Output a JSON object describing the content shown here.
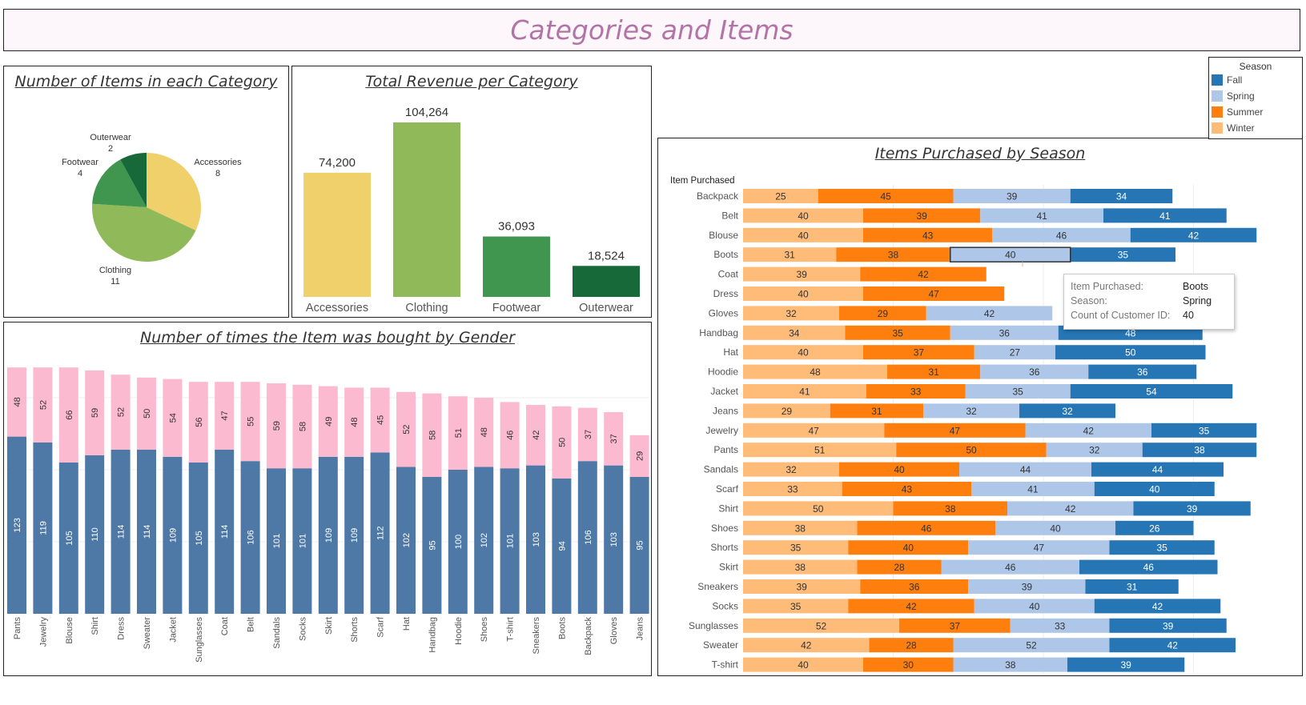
{
  "dashboard": {
    "title": "Categories and Items"
  },
  "colors": {
    "Fall": "#2676b5",
    "Spring": "#aec7e8",
    "Summer": "#ff7f0e",
    "Winter": "#ffbb78",
    "Male": "#4e79a7",
    "Female": "#fbbad0",
    "Accessories": "#f0d06a",
    "Clothing": "#90ba5a",
    "Footwear": "#40954f",
    "Outerwear": "#17693a",
    "title_text": "#b274a6"
  },
  "legend": {
    "title": "Season",
    "items": [
      {
        "label": "Fall",
        "color": "#2676b5"
      },
      {
        "label": "Spring",
        "color": "#aec7e8"
      },
      {
        "label": "Summer",
        "color": "#ff7f0e"
      },
      {
        "label": "Winter",
        "color": "#ffbb78"
      }
    ]
  },
  "tooltip": {
    "rows": [
      {
        "key": "Item Purchased:",
        "value": "Boots"
      },
      {
        "key": "Season:",
        "value": "Spring"
      },
      {
        "key": "Count of Customer ID:",
        "value": "40"
      }
    ]
  },
  "chart_data": [
    {
      "title": "Number of Items in each Category",
      "type": "pie",
      "labels": [
        "Accessories",
        "Clothing",
        "Footwear",
        "Outerwear"
      ],
      "values": [
        8,
        11,
        4,
        2
      ]
    },
    {
      "title": "Total Revenue per Category",
      "type": "bar",
      "categories": [
        "Accessories",
        "Clothing",
        "Footwear",
        "Outerwear"
      ],
      "values": [
        74200,
        104264,
        36093,
        18524
      ],
      "value_labels": [
        "74,200",
        "104,264",
        "36,093",
        "18,524"
      ]
    },
    {
      "title": "Number of times the Item was bought by Gender",
      "type": "bar",
      "stacked": true,
      "categories": [
        "Pants",
        "Jewelry",
        "Blouse",
        "Shirt",
        "Dress",
        "Sweater",
        "Jacket",
        "Sunglasses",
        "Coat",
        "Belt",
        "Sandals",
        "Socks",
        "Skirt",
        "Shorts",
        "Scarf",
        "Hat",
        "Handbag",
        "Hoodie",
        "Shoes",
        "T-shirt",
        "Sneakers",
        "Boots",
        "Backpack",
        "Gloves",
        "Jeans"
      ],
      "series": [
        {
          "values": [
            123,
            119,
            105,
            110,
            114,
            114,
            109,
            105,
            114,
            106,
            101,
            101,
            109,
            109,
            112,
            102,
            95,
            100,
            102,
            101,
            103,
            94,
            106,
            103,
            95
          ]
        },
        {
          "values": [
            48,
            52,
            66,
            59,
            52,
            50,
            54,
            56,
            47,
            55,
            59,
            58,
            49,
            48,
            45,
            52,
            58,
            51,
            48,
            46,
            42,
            50,
            37,
            37,
            29
          ]
        }
      ]
    },
    {
      "title": "Items Purchased by Season",
      "type": "bar",
      "orientation": "horizontal",
      "stacked": true,
      "ylabel": "Item Purchased",
      "categories": [
        "Backpack",
        "Belt",
        "Blouse",
        "Boots",
        "Coat",
        "Dress",
        "Gloves",
        "Handbag",
        "Hat",
        "Hoodie",
        "Jacket",
        "Jeans",
        "Jewelry",
        "Pants",
        "Sandals",
        "Scarf",
        "Shirt",
        "Shoes",
        "Shorts",
        "Skirt",
        "Sneakers",
        "Socks",
        "Sunglasses",
        "Sweater",
        "T-shirt"
      ],
      "series": [
        {
          "name": "Winter",
          "values": [
            25,
            40,
            40,
            31,
            39,
            40,
            32,
            34,
            40,
            48,
            41,
            29,
            47,
            51,
            32,
            33,
            50,
            38,
            35,
            38,
            39,
            35,
            52,
            42,
            40
          ]
        },
        {
          "name": "Summer",
          "values": [
            45,
            39,
            43,
            38,
            42,
            47,
            29,
            35,
            37,
            31,
            33,
            31,
            47,
            50,
            40,
            43,
            38,
            46,
            40,
            28,
            36,
            42,
            37,
            28,
            30
          ]
        },
        {
          "name": "Spring",
          "values": [
            39,
            41,
            46,
            40,
            null,
            null,
            42,
            36,
            27,
            36,
            35,
            32,
            42,
            32,
            44,
            41,
            42,
            40,
            47,
            46,
            39,
            40,
            33,
            52,
            38
          ]
        },
        {
          "name": "Fall",
          "values": [
            34,
            41,
            42,
            35,
            null,
            null,
            null,
            48,
            50,
            36,
            54,
            32,
            35,
            38,
            44,
            40,
            39,
            26,
            35,
            46,
            31,
            42,
            39,
            42,
            39
          ]
        }
      ]
    }
  ]
}
